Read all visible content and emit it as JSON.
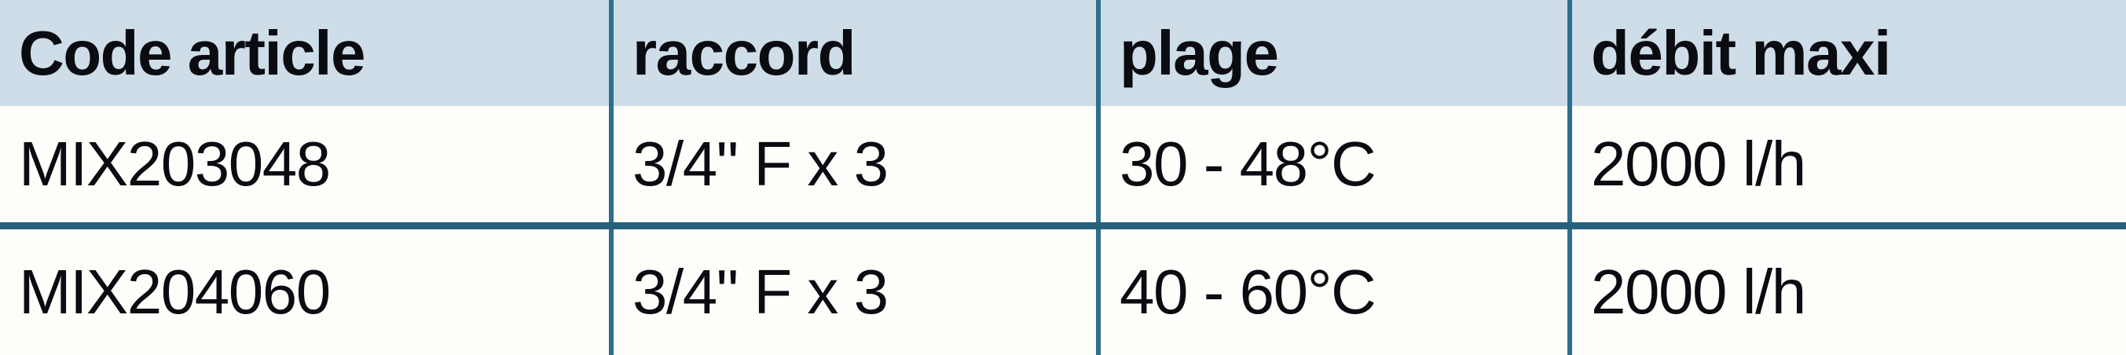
{
  "table": {
    "headers": [
      "Code article",
      "raccord",
      "plage",
      "débit maxi"
    ],
    "rows": [
      [
        "MIX203048",
        "3/4\" F x 3",
        "30 - 48°C",
        "2000 l/h"
      ],
      [
        "MIX204060",
        "3/4\" F x 3",
        "40 - 60°C",
        "2000 l/h"
      ]
    ],
    "colors": {
      "header_bg": "#cfdde9",
      "row_bg": "#fdfdfa",
      "vertical_border": "#2e6e8e",
      "horizontal_border": "#26607b",
      "text": "#0b0b12"
    }
  }
}
